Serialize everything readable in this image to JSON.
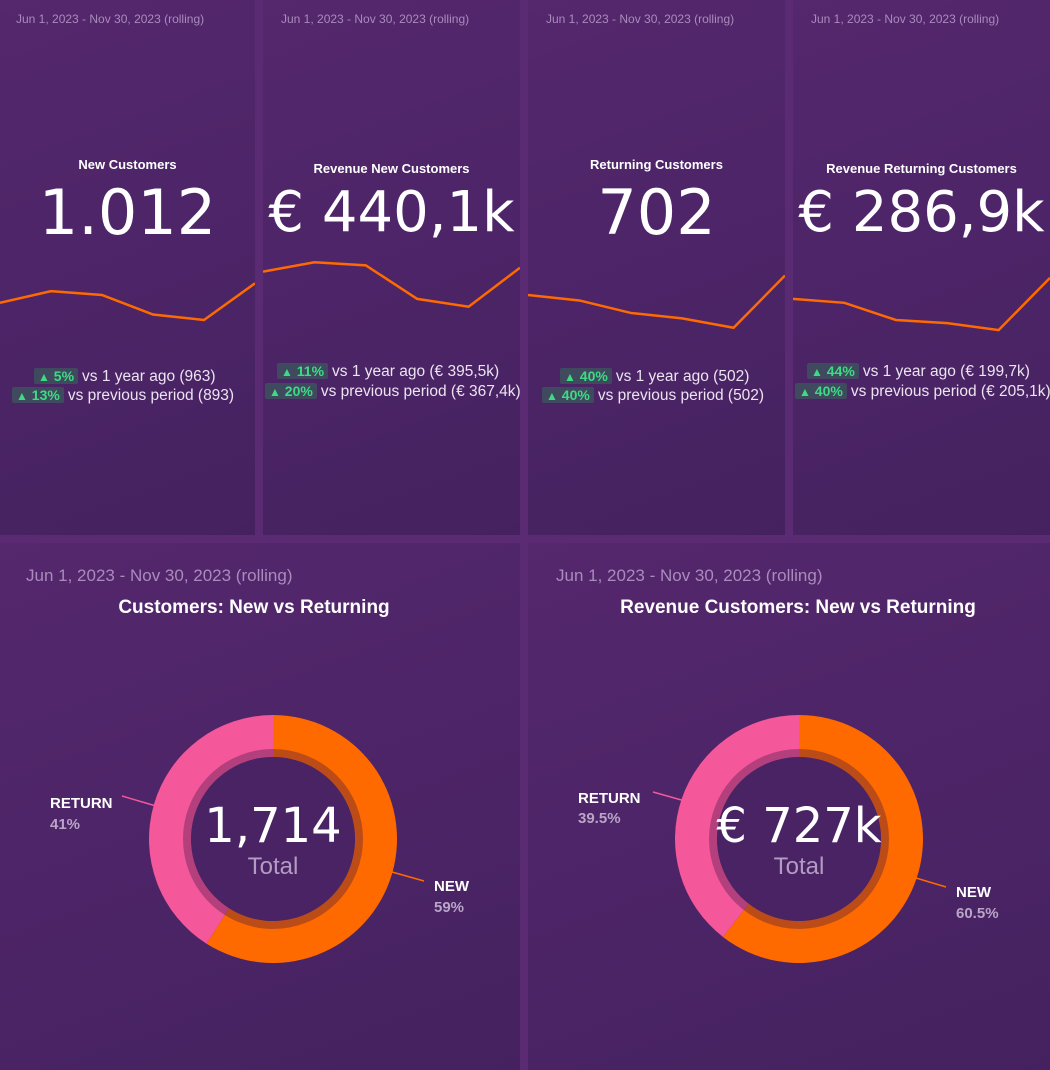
{
  "kpis": [
    {
      "date": "Jun 1, 2023 - Nov 30, 2023 (rolling)",
      "title": "New Customers",
      "value": "1.012",
      "comparisons": [
        {
          "pct": "5%",
          "text": "vs 1 year ago (963)"
        },
        {
          "pct": "13%",
          "text": "vs previous period (893)"
        }
      ],
      "trend": [
        40,
        55,
        50,
        25,
        18,
        65
      ]
    },
    {
      "date": "Jun 1, 2023 - Nov 30, 2023 (rolling)",
      "title": "Revenue New Customers",
      "value": "€ 440,1k",
      "comparisons": [
        {
          "pct": "11%",
          "text": "vs 1 year ago (€ 395,5k)"
        },
        {
          "pct": "20%",
          "text": "vs previous period (€ 367,4k)"
        }
      ],
      "trend": [
        80,
        92,
        88,
        45,
        35,
        85
      ]
    },
    {
      "date": "Jun 1, 2023 - Nov 30, 2023 (rolling)",
      "title": "Returning Customers",
      "value": "702",
      "comparisons": [
        {
          "pct": "40%",
          "text": "vs 1 year ago (502)"
        },
        {
          "pct": "40%",
          "text": "vs previous period (502)"
        }
      ],
      "trend": [
        50,
        43,
        27,
        20,
        8,
        75
      ]
    },
    {
      "date": "Jun 1, 2023 - Nov 30, 2023 (rolling)",
      "title": "Revenue Returning Customers",
      "value": "€ 286,9k",
      "comparisons": [
        {
          "pct": "44%",
          "text": "vs 1 year ago (€ 199,7k)"
        },
        {
          "pct": "40%",
          "text": "vs previous period (€ 205,1k)"
        }
      ],
      "trend": [
        45,
        40,
        18,
        14,
        5,
        72
      ]
    }
  ],
  "donuts": [
    {
      "date": "Jun 1, 2023 - Nov 30, 2023 (rolling)",
      "title": "Customers: New vs Returning",
      "center_value": "1,714",
      "center_label": "Total",
      "slices": [
        {
          "name": "NEW",
          "pct_label": "59%",
          "value": 59,
          "color": "#ff6a00"
        },
        {
          "name": "RETURN",
          "pct_label": "41%",
          "value": 41,
          "color": "#f5579b"
        }
      ]
    },
    {
      "date": "Jun 1, 2023 - Nov 30, 2023 (rolling)",
      "title": "Revenue Customers: New vs Returning",
      "center_value": "€ 727k",
      "center_label": "Total",
      "slices": [
        {
          "name": "NEW",
          "pct_label": "60.5%",
          "value": 60.5,
          "color": "#ff6a00"
        },
        {
          "name": "RETURN",
          "pct_label": "39.5%",
          "value": 39.5,
          "color": "#f5579b"
        }
      ]
    }
  ],
  "colors": {
    "accent_line": "#ff6a00",
    "positive": "#3ddc84",
    "background": "#4b2466"
  }
}
